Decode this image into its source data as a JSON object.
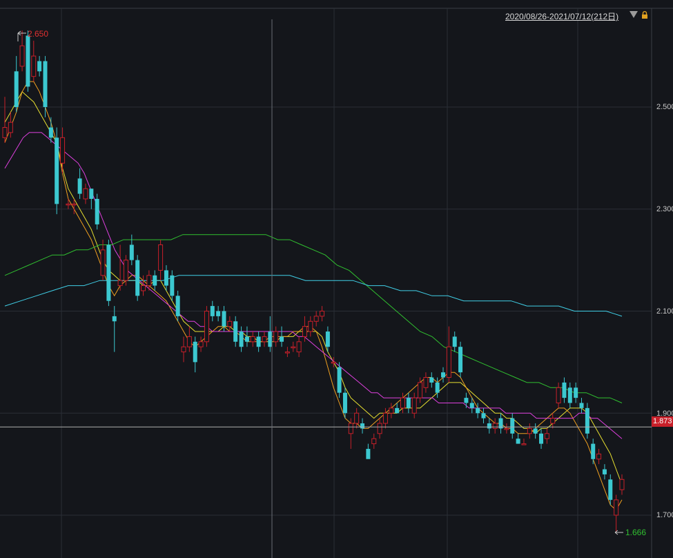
{
  "header": {
    "date_range": "2020/08/26-2021/07/12(212日)"
  },
  "icons": {
    "dropdown": "triangle-down-icon",
    "lock": "lock-icon"
  },
  "colors": {
    "up": "#c8202a",
    "down": "#3cc8d0",
    "ma5": "#f5f5f5",
    "ma10": "#e8e030",
    "ma20": "#f0a020",
    "ma30": "#e040e0",
    "ma60": "#30c030",
    "ma120": "#40d0e8",
    "high_label": "#e03030",
    "low_label": "#30c030",
    "background": "#14161b",
    "grid": "#2a2e36"
  },
  "chart_data": {
    "type": "candlestick",
    "title": "",
    "y_ticks": [
      "2.500",
      "2.300",
      "2.100",
      "1.900",
      "1.700"
    ],
    "y_tick_values": [
      2.5,
      2.3,
      2.1,
      1.9,
      1.7
    ],
    "ylim": [
      1.62,
      2.7
    ],
    "current_price": "1.873",
    "current_price_value": 1.873,
    "high_label": "2.650",
    "high_value": 2.65,
    "low_label": "1.666",
    "low_value": 1.666,
    "grid": true,
    "candles": [
      [
        2.44,
        2.46,
        2.52,
        2.43
      ],
      [
        2.45,
        2.47,
        2.49,
        2.44
      ],
      [
        2.57,
        2.5,
        2.6,
        2.49
      ],
      [
        2.58,
        2.62,
        2.65,
        2.57
      ],
      [
        2.64,
        2.54,
        2.65,
        2.53
      ],
      [
        2.56,
        2.6,
        2.63,
        2.55
      ],
      [
        2.59,
        2.57,
        2.6,
        2.56
      ],
      [
        2.59,
        2.5,
        2.6,
        2.48
      ],
      [
        2.46,
        2.44,
        2.48,
        2.43
      ],
      [
        2.44,
        2.31,
        2.46,
        2.29
      ],
      [
        2.39,
        2.44,
        2.46,
        2.37
      ],
      [
        2.31,
        2.31,
        2.32,
        2.3
      ],
      [
        2.31,
        2.31,
        2.32,
        2.29
      ],
      [
        2.36,
        2.33,
        2.38,
        2.32
      ],
      [
        2.32,
        2.34,
        2.35,
        2.31
      ],
      [
        2.34,
        2.32,
        2.34,
        2.3
      ],
      [
        2.32,
        2.27,
        2.33,
        2.26
      ],
      [
        2.17,
        2.22,
        2.24,
        2.16
      ],
      [
        2.23,
        2.12,
        2.24,
        2.11
      ],
      [
        2.09,
        2.08,
        2.11,
        2.02
      ],
      [
        2.15,
        2.16,
        2.23,
        2.14
      ],
      [
        2.16,
        2.2,
        2.21,
        2.15
      ],
      [
        2.23,
        2.2,
        2.25,
        2.19
      ],
      [
        2.2,
        2.13,
        2.21,
        2.12
      ],
      [
        2.14,
        2.15,
        2.17,
        2.13
      ],
      [
        2.15,
        2.17,
        2.18,
        2.14
      ],
      [
        2.17,
        2.15,
        2.18,
        2.14
      ],
      [
        2.18,
        2.23,
        2.24,
        2.16
      ],
      [
        2.18,
        2.15,
        2.19,
        2.14
      ],
      [
        2.17,
        2.13,
        2.18,
        2.12
      ],
      [
        2.13,
        2.09,
        2.14,
        2.08
      ],
      [
        2.02,
        2.03,
        2.05,
        2.0
      ],
      [
        2.03,
        2.05,
        2.07,
        2.02
      ],
      [
        2.04,
        2.0,
        2.05,
        1.98
      ],
      [
        2.03,
        2.04,
        2.05,
        2.02
      ],
      [
        2.04,
        2.1,
        2.11,
        2.03
      ],
      [
        2.11,
        2.09,
        2.12,
        2.08
      ],
      [
        2.1,
        2.09,
        2.11,
        2.08
      ],
      [
        2.1,
        2.07,
        2.11,
        2.06
      ],
      [
        2.07,
        2.08,
        2.09,
        2.06
      ],
      [
        2.08,
        2.04,
        2.09,
        2.03
      ],
      [
        2.06,
        2.03,
        2.07,
        2.02
      ],
      [
        2.05,
        2.04,
        2.07,
        2.03
      ],
      [
        2.04,
        2.05,
        2.06,
        2.03
      ],
      [
        2.05,
        2.03,
        2.06,
        2.02
      ],
      [
        2.04,
        2.05,
        2.06,
        2.03
      ],
      [
        2.06,
        2.03,
        2.09,
        2.02
      ],
      [
        2.04,
        2.06,
        2.07,
        2.03
      ],
      [
        2.05,
        2.04,
        2.07,
        2.03
      ],
      [
        2.02,
        2.02,
        2.03,
        2.01
      ],
      [
        2.03,
        2.03,
        2.04,
        2.02
      ],
      [
        2.02,
        2.04,
        2.05,
        2.01
      ],
      [
        2.05,
        2.07,
        2.09,
        2.04
      ],
      [
        2.06,
        2.08,
        2.09,
        2.05
      ],
      [
        2.08,
        2.09,
        2.1,
        2.07
      ],
      [
        2.09,
        2.1,
        2.11,
        2.08
      ],
      [
        2.06,
        2.03,
        2.07,
        2.02
      ],
      [
        2.0,
        2.0,
        2.01,
        1.99
      ],
      [
        1.99,
        1.94,
        2.0,
        1.93
      ],
      [
        1.94,
        1.9,
        1.95,
        1.89
      ],
      [
        1.86,
        1.88,
        1.89,
        1.83
      ],
      [
        1.88,
        1.9,
        1.91,
        1.87
      ],
      [
        1.88,
        1.87,
        1.89,
        1.86
      ],
      [
        1.83,
        1.81,
        1.84,
        1.82
      ],
      [
        1.84,
        1.85,
        1.86,
        1.83
      ],
      [
        1.86,
        1.88,
        1.89,
        1.85
      ],
      [
        1.88,
        1.9,
        1.91,
        1.87
      ],
      [
        1.9,
        1.91,
        1.92,
        1.89
      ],
      [
        1.91,
        1.9,
        1.92,
        1.9
      ],
      [
        1.91,
        1.93,
        1.94,
        1.9
      ],
      [
        1.93,
        1.91,
        1.94,
        1.9
      ],
      [
        1.9,
        1.93,
        1.94,
        1.89
      ],
      [
        1.93,
        1.96,
        1.97,
        1.92
      ],
      [
        1.95,
        1.97,
        1.98,
        1.94
      ],
      [
        1.97,
        1.96,
        1.98,
        1.95
      ],
      [
        1.96,
        1.94,
        1.97,
        1.93
      ],
      [
        1.98,
        1.97,
        1.99,
        1.96
      ],
      [
        1.97,
        2.03,
        2.07,
        1.96
      ],
      [
        2.05,
        2.03,
        2.06,
        2.02
      ],
      [
        2.03,
        1.98,
        2.04,
        1.97
      ],
      [
        1.93,
        1.92,
        1.94,
        1.91
      ],
      [
        1.92,
        1.91,
        1.93,
        1.9
      ],
      [
        1.91,
        1.9,
        1.92,
        1.89
      ],
      [
        1.9,
        1.89,
        1.91,
        1.88
      ],
      [
        1.88,
        1.87,
        1.89,
        1.86
      ],
      [
        1.87,
        1.88,
        1.89,
        1.86
      ],
      [
        1.89,
        1.87,
        1.9,
        1.86
      ],
      [
        1.87,
        1.87,
        1.88,
        1.86
      ],
      [
        1.89,
        1.86,
        1.9,
        1.85
      ],
      [
        1.85,
        1.84,
        1.86,
        1.84
      ],
      [
        1.84,
        1.84,
        1.85,
        1.84
      ],
      [
        1.86,
        1.87,
        1.88,
        1.85
      ],
      [
        1.87,
        1.86,
        1.88,
        1.85
      ],
      [
        1.86,
        1.84,
        1.87,
        1.83
      ],
      [
        1.85,
        1.86,
        1.87,
        1.84
      ],
      [
        1.88,
        1.89,
        1.9,
        1.87
      ],
      [
        1.92,
        1.95,
        1.96,
        1.91
      ],
      [
        1.96,
        1.93,
        1.97,
        1.92
      ],
      [
        1.95,
        1.92,
        1.96,
        1.91
      ],
      [
        1.95,
        1.93,
        1.96,
        1.92
      ],
      [
        1.92,
        1.91,
        1.93,
        1.9
      ],
      [
        1.91,
        1.86,
        1.92,
        1.85
      ],
      [
        1.84,
        1.81,
        1.85,
        1.8
      ],
      [
        1.81,
        1.82,
        1.83,
        1.8
      ],
      [
        1.79,
        1.78,
        1.8,
        1.77
      ],
      [
        1.77,
        1.73,
        1.78,
        1.72
      ],
      [
        1.7,
        1.73,
        1.74,
        1.666
      ],
      [
        1.75,
        1.77,
        1.78,
        1.74
      ]
    ],
    "ma_series": [
      {
        "name": "MA5",
        "color": "#f5f5f5",
        "values": []
      },
      {
        "name": "MA10",
        "color": "#e8e030",
        "values": [
          2.47,
          2.49,
          2.51,
          2.53,
          2.52,
          2.51,
          2.49,
          2.47,
          2.45,
          2.43,
          2.38,
          2.34,
          2.32,
          2.3,
          2.28,
          2.26,
          2.23,
          2.2,
          2.18,
          2.17,
          2.16,
          2.16,
          2.16,
          2.16,
          2.15,
          2.15,
          2.16,
          2.16,
          2.14,
          2.12,
          2.1,
          2.08,
          2.07,
          2.06,
          2.06,
          2.06,
          2.06,
          2.06,
          2.07,
          2.07,
          2.06,
          2.06,
          2.05,
          2.05,
          2.04,
          2.04,
          2.04,
          2.04,
          2.05,
          2.05,
          2.05,
          2.06,
          2.06,
          2.06,
          2.06,
          2.05,
          2.02,
          2.0,
          1.98,
          1.95,
          1.93,
          1.92,
          1.91,
          1.9,
          1.89,
          1.9,
          1.9,
          1.9,
          1.9,
          1.91,
          1.91,
          1.91,
          1.91,
          1.92,
          1.93,
          1.94,
          1.95,
          1.96,
          1.96,
          1.96,
          1.95,
          1.94,
          1.93,
          1.92,
          1.91,
          1.9,
          1.9,
          1.89,
          1.89,
          1.88,
          1.87,
          1.87,
          1.86,
          1.87,
          1.87,
          1.88,
          1.89,
          1.9,
          1.91,
          1.91,
          1.91,
          1.9,
          1.88,
          1.86,
          1.84,
          1.82,
          1.79,
          1.76
        ]
      },
      {
        "name": "MA20",
        "color": "#f0a020",
        "values": [
          2.43,
          2.46,
          2.49,
          2.53,
          2.55,
          2.55,
          2.53,
          2.5,
          2.47,
          2.43,
          2.37,
          2.32,
          2.3,
          2.28,
          2.26,
          2.24,
          2.21,
          2.18,
          2.15,
          2.13,
          2.15,
          2.16,
          2.17,
          2.17,
          2.16,
          2.15,
          2.14,
          2.13,
          2.12,
          2.1,
          2.08,
          2.06,
          2.04,
          2.03,
          2.04,
          2.05,
          2.06,
          2.07,
          2.07,
          2.06,
          2.06,
          2.05,
          2.04,
          2.04,
          2.04,
          2.04,
          2.05,
          2.05,
          2.05,
          2.05,
          2.06,
          2.06,
          2.07,
          2.07,
          2.06,
          2.03,
          1.99,
          1.95,
          1.92,
          1.89,
          1.88,
          1.88,
          1.87,
          1.87,
          1.88,
          1.89,
          1.9,
          1.91,
          1.92,
          1.93,
          1.94,
          1.95,
          1.96,
          1.97,
          1.97,
          1.96,
          1.97,
          1.98,
          1.98,
          1.97,
          1.95,
          1.93,
          1.91,
          1.9,
          1.89,
          1.88,
          1.88,
          1.87,
          1.87,
          1.86,
          1.86,
          1.86,
          1.87,
          1.88,
          1.89,
          1.9,
          1.91,
          1.91,
          1.9,
          1.88,
          1.86,
          1.84,
          1.81,
          1.78,
          1.75,
          1.72,
          1.71,
          1.73
        ]
      },
      {
        "name": "MA30",
        "color": "#e040e0",
        "values": [
          2.38,
          2.4,
          2.42,
          2.44,
          2.45,
          2.45,
          2.45,
          2.44,
          2.43,
          2.42,
          2.41,
          2.4,
          2.39,
          2.37,
          2.34,
          2.31,
          2.28,
          2.25,
          2.22,
          2.2,
          2.18,
          2.17,
          2.16,
          2.15,
          2.14,
          2.13,
          2.12,
          2.11,
          2.1,
          2.09,
          2.08,
          2.08,
          2.07,
          2.07,
          2.06,
          2.06,
          2.06,
          2.06,
          2.06,
          2.06,
          2.06,
          2.06,
          2.06,
          2.06,
          2.06,
          2.06,
          2.06,
          2.06,
          2.05,
          2.05,
          2.04,
          2.03,
          2.02,
          2.01,
          2.0,
          1.99,
          1.98,
          1.97,
          1.96,
          1.95,
          1.94,
          1.94,
          1.93,
          1.93,
          1.93,
          1.93,
          1.93,
          1.93,
          1.93,
          1.93,
          1.93,
          1.92,
          1.92,
          1.92,
          1.92,
          1.92,
          1.91,
          1.91,
          1.91,
          1.91,
          1.91,
          1.91,
          1.9,
          1.9,
          1.9,
          1.9,
          1.9,
          1.89,
          1.89,
          1.89,
          1.89,
          1.89,
          1.89,
          1.89,
          1.9,
          1.9,
          1.89,
          1.89,
          1.88,
          1.87,
          1.86,
          1.85
        ]
      },
      {
        "name": "MA60",
        "color": "#30c030",
        "values": [
          2.17,
          2.18,
          2.19,
          2.2,
          2.21,
          2.21,
          2.22,
          2.22,
          2.23,
          2.23,
          2.24,
          2.24,
          2.24,
          2.24,
          2.24,
          2.25,
          2.25,
          2.25,
          2.25,
          2.25,
          2.25,
          2.25,
          2.25,
          2.24,
          2.24,
          2.23,
          2.22,
          2.21,
          2.19,
          2.18,
          2.16,
          2.14,
          2.12,
          2.1,
          2.08,
          2.06,
          2.05,
          2.03,
          2.02,
          2.01,
          2.0,
          1.99,
          1.98,
          1.97,
          1.96,
          1.96,
          1.95,
          1.95,
          1.94,
          1.94,
          1.93,
          1.93,
          1.92
        ]
      },
      {
        "name": "MA120",
        "color": "#40d0e8",
        "values": [
          2.11,
          2.12,
          2.13,
          2.14,
          2.15,
          2.15,
          2.16,
          2.16,
          2.16,
          2.16,
          2.16,
          2.17,
          2.17,
          2.17,
          2.17,
          2.17,
          2.17,
          2.17,
          2.17,
          2.16,
          2.16,
          2.16,
          2.16,
          2.15,
          2.15,
          2.14,
          2.14,
          2.13,
          2.13,
          2.12,
          2.12,
          2.12,
          2.12,
          2.11,
          2.11,
          2.11,
          2.1,
          2.1,
          2.1,
          2.09
        ]
      }
    ]
  }
}
